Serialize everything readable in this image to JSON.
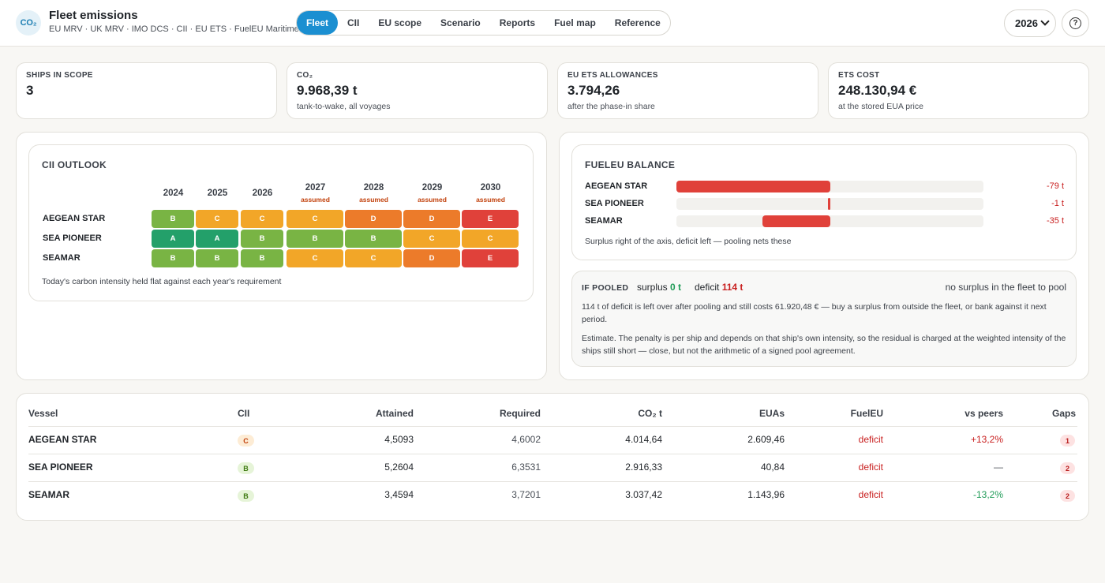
{
  "header": {
    "logo": "CO₂",
    "title": "Fleet emissions",
    "subtitle": "EU MRV · UK MRV · IMO DCS · CII · EU ETS · FuelEU Maritime",
    "tabs": [
      "Fleet",
      "CII",
      "EU scope",
      "Scenario",
      "Reports",
      "Fuel map",
      "Reference"
    ],
    "active_tab": "Fleet",
    "year": "2026",
    "help_icon": "?"
  },
  "kpis": [
    {
      "label": "Ships in scope",
      "value": "3",
      "note": ""
    },
    {
      "label": "CO₂",
      "value": "9.968,39 t",
      "note": "tank-to-wake, all voyages"
    },
    {
      "label": "EU ETS allowances",
      "value": "3.794,26",
      "note": "after the phase-in share"
    },
    {
      "label": "ETS cost",
      "value": "248.130,94 €",
      "note": "at the stored EUA price"
    }
  ],
  "cii": {
    "title": "CII outlook",
    "years": [
      "2024",
      "2025",
      "2026",
      "2027",
      "2028",
      "2029",
      "2030"
    ],
    "assumed_label": "assumed",
    "assumed_from_index": 3,
    "ships": [
      {
        "name": "AEGEAN STAR",
        "grades": [
          "B",
          "C",
          "C",
          "C",
          "D",
          "D",
          "E"
        ]
      },
      {
        "name": "SEA PIONEER",
        "grades": [
          "A",
          "A",
          "B",
          "B",
          "B",
          "C",
          "C"
        ]
      },
      {
        "name": "SEAMAR",
        "grades": [
          "B",
          "B",
          "B",
          "C",
          "C",
          "D",
          "E"
        ]
      }
    ],
    "grade_colors": {
      "A": "#23a06a",
      "B": "#79b444",
      "C": "#f2a628",
      "D": "#ec7b2a",
      "E": "#e0413a"
    },
    "note": "Today's carbon intensity held flat against each year's requirement"
  },
  "fueleu": {
    "title": "FuelEU balance",
    "axis_min": -100,
    "axis_max": 100,
    "ships": [
      {
        "name": "AEGEAN STAR",
        "balance": -79,
        "label": "-79 t"
      },
      {
        "name": "SEA PIONEER",
        "balance": -1,
        "label": "-1 t"
      },
      {
        "name": "SEAMAR",
        "balance": -35,
        "label": "-35 t"
      }
    ],
    "note": "Surplus right of the axis, deficit left — pooling nets these"
  },
  "pooled": {
    "title": "IF POOLED",
    "surplus_label": "surplus",
    "surplus_value": "0 t",
    "deficit_label": "deficit",
    "deficit_value": "114 t",
    "right_note": "no surplus in the fleet to pool",
    "para1": "114 t of deficit is left over after pooling and still costs 61.920,48 € — buy a surplus from outside the fleet, or bank against it next period.",
    "para2": "Estimate. The penalty is per ship and depends on that ship's own intensity, so the residual is charged at the weighted intensity of the ships still short — close, but not the arithmetic of a signed pool agreement."
  },
  "table": {
    "columns": [
      "Vessel",
      "CII",
      "Attained",
      "Required",
      "CO₂ t",
      "EUAs",
      "FuelEU",
      "vs peers",
      "Gaps"
    ],
    "rows": [
      {
        "vessel": "AEGEAN STAR",
        "cii": "C",
        "attained": "4,5093",
        "required": "4,6002",
        "co2": "4.014,64",
        "euas": "2.609,46",
        "fueleu": "deficit",
        "vs_peers": "+13,2%",
        "gaps": "1"
      },
      {
        "vessel": "SEA PIONEER",
        "cii": "B",
        "attained": "5,2604",
        "required": "6,3531",
        "co2": "2.916,33",
        "euas": "40,84",
        "fueleu": "deficit",
        "vs_peers": "—",
        "gaps": "2"
      },
      {
        "vessel": "SEAMAR",
        "cii": "B",
        "attained": "3,4594",
        "required": "3,7201",
        "co2": "3.037,42",
        "euas": "1.143,96",
        "fueleu": "deficit",
        "vs_peers": "-13,2%",
        "gaps": "2"
      }
    ]
  }
}
